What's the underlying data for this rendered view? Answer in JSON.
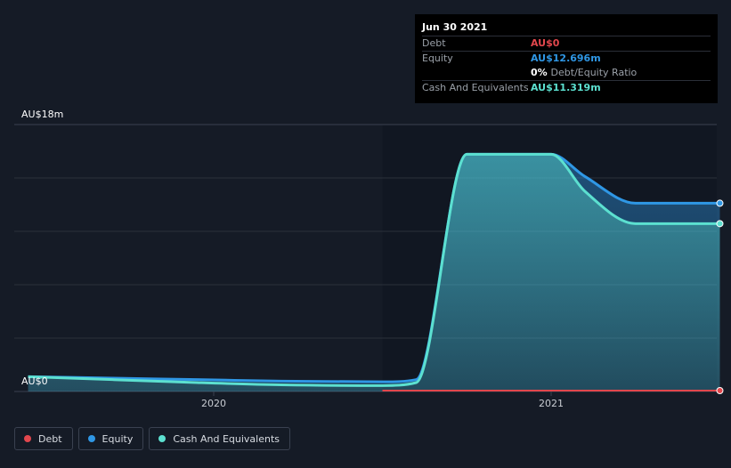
{
  "tooltip": {
    "date": "Jun 30 2021",
    "rows": [
      {
        "label": "Debt",
        "value": "AU$0"
      },
      {
        "label": "Equity",
        "value": "AU$12.696m"
      },
      {
        "ratio_value": "0%",
        "ratio_label": "Debt/Equity Ratio"
      },
      {
        "label": "Cash And Equivalents",
        "value": "AU$11.319m"
      }
    ]
  },
  "legend": [
    {
      "label": "Debt",
      "color": "#e2474d"
    },
    {
      "label": "Equity",
      "color": "#2f97e5"
    },
    {
      "label": "Cash And Equivalents",
      "color": "#5ce0d0"
    }
  ],
  "colors": {
    "background": "#151b26",
    "plot_recent": "#111722",
    "debt": "#e2474d",
    "equity": "#2f97e5",
    "cash": "#5ce0d0",
    "grid": "#2a303b"
  },
  "chart_data": {
    "type": "area",
    "title": "",
    "xlabel": "",
    "ylabel": "",
    "y_tick_labels": [
      "AU$18m",
      "AU$0"
    ],
    "x_tick_labels": [
      "2020",
      "2021"
    ],
    "ylim": [
      0,
      18
    ],
    "xlim": [
      2019.45,
      2021.5
    ],
    "grid": true,
    "legend_position": "bottom-left",
    "highlight_start": 2020.5,
    "series": [
      {
        "name": "Debt",
        "x": [
          2020.5,
          2021.0,
          2021.5
        ],
        "y": [
          0,
          0,
          0
        ]
      },
      {
        "name": "Equity",
        "x": [
          2019.45,
          2019.7,
          2019.95,
          2020.2,
          2020.5,
          2020.6,
          2020.75,
          2020.9,
          2021.0,
          2021.1,
          2021.25,
          2021.5
        ],
        "y": [
          1.0,
          0.9,
          0.8,
          0.7,
          0.65,
          0.8,
          16.0,
          16.0,
          16.0,
          14.5,
          12.696,
          12.696
        ]
      },
      {
        "name": "Cash And Equivalents",
        "x": [
          2019.45,
          2019.7,
          2019.95,
          2020.2,
          2020.5,
          2020.6,
          2020.75,
          2020.9,
          2021.0,
          2021.1,
          2021.25,
          2021.5
        ],
        "y": [
          1.0,
          0.8,
          0.6,
          0.45,
          0.4,
          0.6,
          16.0,
          16.0,
          16.0,
          13.5,
          11.319,
          11.319
        ]
      }
    ]
  }
}
